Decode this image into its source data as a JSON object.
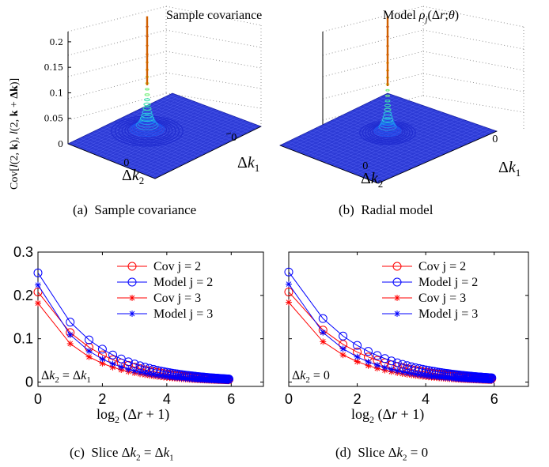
{
  "chart_data": [
    {
      "panel": "a",
      "type": "surface3d",
      "title": "Sample covariance",
      "caption": "(a)  Sample covariance",
      "zlabel": "Cov[l(2, k), l(2, k + Δk)]",
      "xlabel": "Δk2",
      "ylabel": "Δk1",
      "z_ticks": [
        "0",
        "0.05",
        "0.1",
        "0.15",
        "0.2"
      ],
      "x_ticks": [
        "0"
      ],
      "y_ticks": [
        "0"
      ],
      "zlim": [
        0,
        0.22
      ],
      "peak": 0.25
    },
    {
      "panel": "b",
      "type": "surface3d",
      "title": "Model ρj(Δr;θ)",
      "caption": "(b)  Radial model",
      "xlabel": "Δk2",
      "ylabel": "Δk1",
      "x_ticks": [
        "0"
      ],
      "y_ticks": [
        "0"
      ],
      "zlim": [
        0,
        0.22
      ],
      "peak": 0.25
    },
    {
      "panel": "c",
      "type": "line",
      "caption": "(c)  Slice Δk2 = Δk1",
      "annotation": "Δk2 = Δk1",
      "xlabel": "log2 (Δr + 1)",
      "xlim": [
        0,
        7
      ],
      "ylim": [
        -0.01,
        0.3
      ],
      "x_ticks": [
        "0",
        "2",
        "4",
        "6"
      ],
      "y_ticks": [
        "0",
        "0.1",
        "0.2",
        "0.3"
      ],
      "legend_position": "top-right",
      "series": [
        {
          "name": "Cov j = 2",
          "marker": "circle",
          "color": "#ff0000",
          "y0": 0.208,
          "decay": 0.6
        },
        {
          "name": "Model j = 2",
          "marker": "circle",
          "color": "#0000ff",
          "y0": 0.252,
          "decay": 0.6
        },
        {
          "name": "Cov j = 3",
          "marker": "star",
          "color": "#ff0000",
          "y0": 0.182,
          "decay": 0.72
        },
        {
          "name": "Model j = 3",
          "marker": "star",
          "color": "#0000ff",
          "y0": 0.224,
          "decay": 0.72
        }
      ]
    },
    {
      "panel": "d",
      "type": "line",
      "caption": "(d)  Slice Δk2 = 0",
      "annotation": "Δk2 = 0",
      "xlabel": "log2 (Δr + 1)",
      "xlim": [
        0,
        7
      ],
      "ylim": [
        -0.01,
        0.3
      ],
      "x_ticks": [
        "0",
        "2",
        "4",
        "6"
      ],
      "y_ticks": [
        "0",
        "0.1",
        "0.2",
        "0.3"
      ],
      "legend_position": "top-right",
      "series": [
        {
          "name": "Cov j = 2",
          "marker": "circle",
          "color": "#ff0000",
          "y0": 0.208,
          "decay": 0.55
        },
        {
          "name": "Model j = 2",
          "marker": "circle",
          "color": "#0000ff",
          "y0": 0.254,
          "decay": 0.55
        },
        {
          "name": "Cov j = 3",
          "marker": "star",
          "color": "#ff0000",
          "y0": 0.184,
          "decay": 0.68
        },
        {
          "name": "Model j = 3",
          "marker": "star",
          "color": "#0000ff",
          "y0": 0.226,
          "decay": 0.68
        }
      ]
    }
  ]
}
